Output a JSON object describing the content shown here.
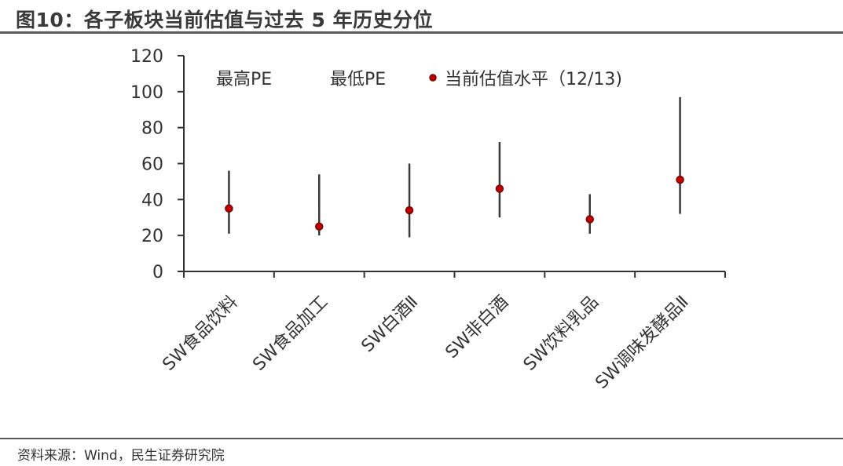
{
  "header": {
    "title": "图10：各子板块当前估值与过去 5 年历史分位"
  },
  "footer": {
    "source": "资料来源：Wind，民生证券研究院"
  },
  "colors": {
    "range_line": "#3a3a3a",
    "marker_fill": "#c00000",
    "axis": "#333333"
  },
  "chart_data": {
    "type": "scatter",
    "title": "",
    "xlabel": "",
    "ylabel": "",
    "ylim": [
      0,
      120
    ],
    "yticks": [
      0,
      20,
      40,
      60,
      80,
      100,
      120
    ],
    "grid": false,
    "categories": [
      "SW食品饮料",
      "SW食品加工",
      "SW白酒Ⅱ",
      "SW非白酒",
      "SW饮料乳品",
      "SW调味发酵品Ⅱ"
    ],
    "legend": [
      "最高PE",
      "最低PE",
      "当前估值水平（12/13)"
    ],
    "legend_position": "top",
    "series": [
      {
        "name": "最高PE",
        "values": [
          56,
          54,
          60,
          72,
          43,
          97
        ]
      },
      {
        "name": "最低PE",
        "values": [
          21,
          20,
          19,
          30,
          21,
          32
        ]
      },
      {
        "name": "当前估值水平（12/13)",
        "values": [
          35,
          25,
          34,
          46,
          29,
          51
        ]
      }
    ]
  }
}
